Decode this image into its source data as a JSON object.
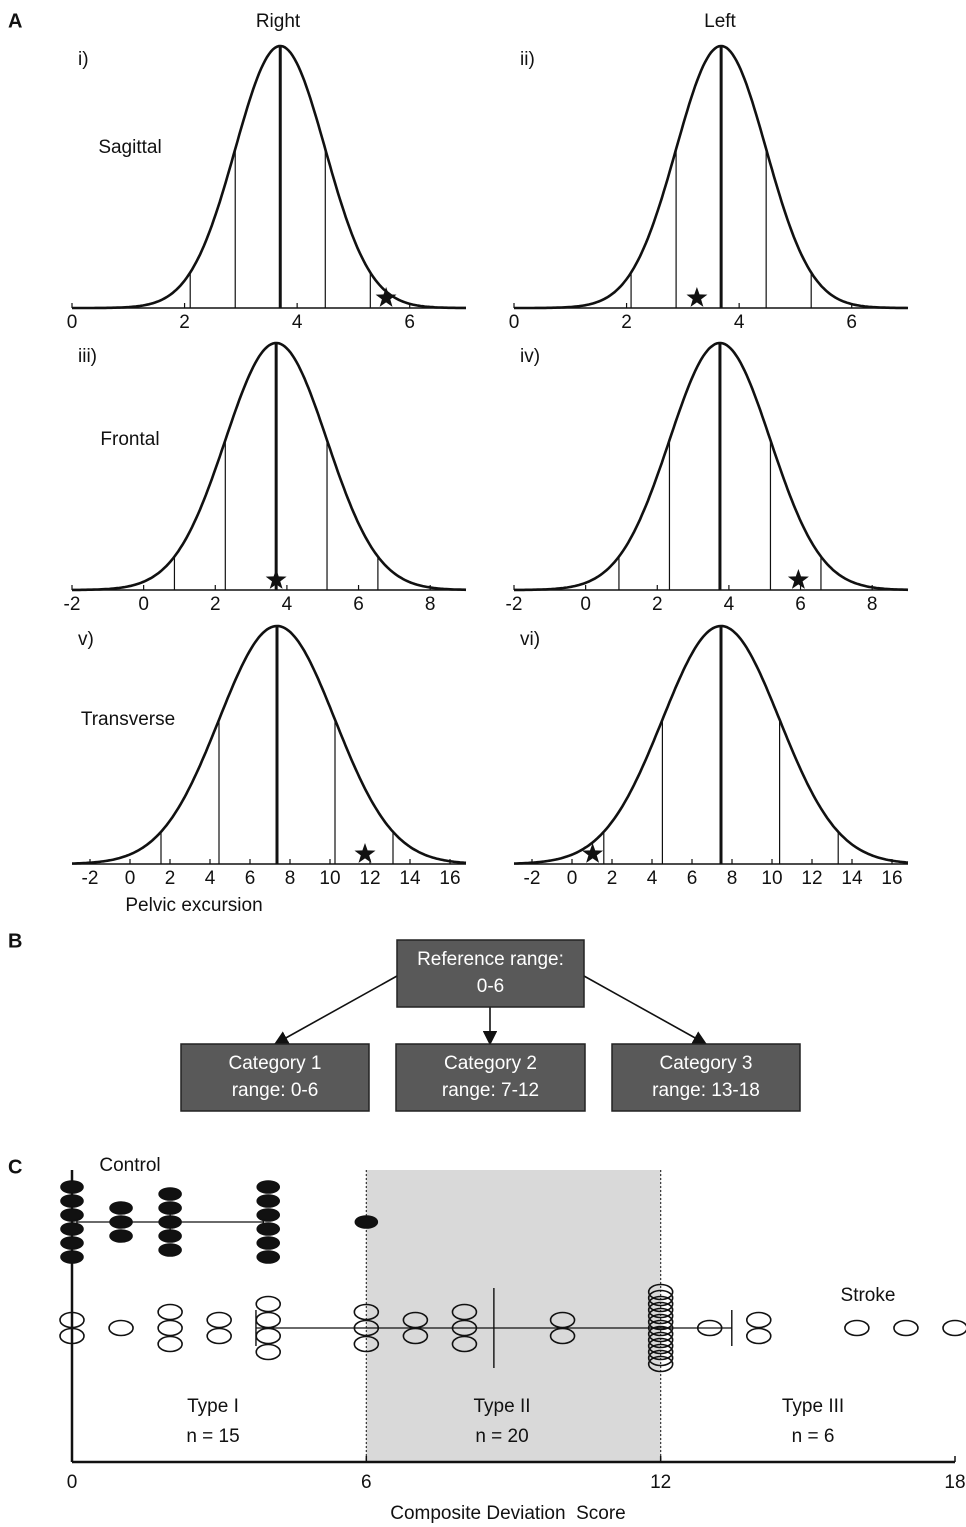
{
  "figure": {
    "panel_labels": [
      "A",
      "B",
      "C"
    ],
    "columns": [
      "Right",
      "Left"
    ],
    "rows": [
      "Sagittal",
      "Frontal",
      "Transverse"
    ]
  },
  "chart_data": [
    {
      "type": "normal",
      "title": "i)",
      "mean": 3.7,
      "sd": 0.8,
      "marker": 5.58,
      "xlim": [
        0,
        7
      ],
      "xticks": [
        0,
        2,
        4,
        6
      ]
    },
    {
      "type": "normal",
      "title": "ii)",
      "mean": 3.68,
      "sd": 0.8,
      "marker": 3.25,
      "xlim": [
        0,
        7
      ],
      "xticks": [
        0,
        2,
        4,
        6
      ]
    },
    {
      "type": "normal",
      "title": "iii)",
      "mean": 3.7,
      "sd": 1.42,
      "marker": 3.7,
      "xlim": [
        -2,
        9
      ],
      "xticks": [
        -2,
        0,
        2,
        4,
        6,
        8
      ]
    },
    {
      "type": "normal",
      "title": "iv)",
      "mean": 3.75,
      "sd": 1.41,
      "marker": 5.94,
      "xlim": [
        -2,
        9
      ],
      "xticks": [
        -2,
        0,
        2,
        4,
        6,
        8
      ]
    },
    {
      "type": "normal",
      "title": "v)",
      "mean": 7.35,
      "sd": 2.9,
      "marker": 11.75,
      "xlim": [
        -2.9,
        16.8
      ],
      "xticks": [
        -2,
        0,
        2,
        4,
        6,
        8,
        10,
        12,
        14,
        16
      ],
      "xlabel": "Pelvic excursion"
    },
    {
      "type": "normal",
      "title": "vi)",
      "mean": 7.45,
      "sd": 2.93,
      "marker": 1.03,
      "xlim": [
        -2.9,
        16.8
      ],
      "xticks": [
        -2,
        0,
        2,
        4,
        6,
        8,
        10,
        12,
        14,
        16
      ]
    },
    {
      "type": "dot",
      "xlim": [
        0,
        18
      ],
      "xticks": [
        0,
        6,
        12,
        18
      ],
      "xlabel": "Composite Deviation  Score",
      "shade": [
        6,
        12
      ],
      "series": [
        {
          "name": "Control",
          "x": [
            0,
            1,
            2,
            4,
            6
          ],
          "counts": [
            6,
            3,
            5,
            6,
            1
          ],
          "mean": 2,
          "sd": 1.9
        },
        {
          "name": "Stroke",
          "x": [
            0,
            1,
            2,
            3,
            4,
            6,
            7,
            8,
            10,
            12,
            13,
            14,
            16,
            17,
            18
          ],
          "counts": [
            2,
            1,
            3,
            2,
            4,
            3,
            2,
            3,
            2,
            13,
            1,
            2,
            1,
            1,
            1
          ],
          "mean": 8.6,
          "sd": 4.85
        }
      ],
      "groups": [
        {
          "name": "Type I",
          "n": "n = 15"
        },
        {
          "name": "Type II",
          "n": "n = 20"
        },
        {
          "name": "Type III",
          "n": "n = 6"
        }
      ]
    }
  ],
  "diagram": {
    "nodes": [
      {
        "lines": [
          "Reference range:",
          "0-6"
        ]
      },
      {
        "lines": [
          "Category 1",
          "range: 0-6"
        ]
      },
      {
        "lines": [
          "Category 2",
          "range: 7-12"
        ]
      },
      {
        "lines": [
          "Category 3",
          "range: 13-18"
        ]
      }
    ]
  }
}
